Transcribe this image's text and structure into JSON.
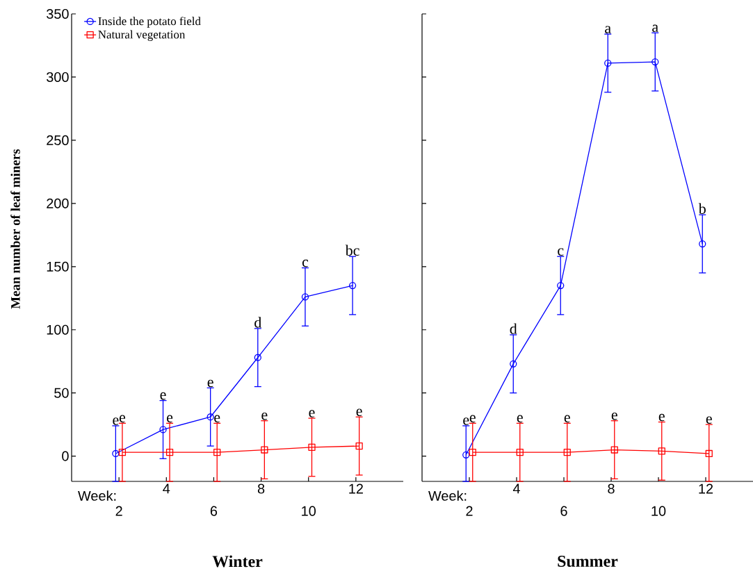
{
  "chart_data": [
    {
      "type": "line",
      "xlabel": "Winter",
      "ylabel": "Mean number of leaf miners",
      "categories": [
        "2",
        "4",
        "6",
        "8",
        "10",
        "12"
      ],
      "ylim": [
        -20,
        350
      ],
      "yticks": [
        0,
        50,
        100,
        150,
        200,
        250,
        300,
        350
      ],
      "legend": "top left",
      "series": [
        {
          "name": "Inside the potato field",
          "color": "#0000ff",
          "marker": "circle",
          "values": [
            2,
            21,
            31,
            78,
            126,
            135
          ],
          "errors": [
            [
              -20,
              24
            ],
            23,
            23,
            23,
            23,
            23
          ]
        },
        {
          "name": "Natural vegetation",
          "color": "#ff0000",
          "marker": "square",
          "values": [
            3,
            3,
            3,
            5,
            7,
            8
          ],
          "errors": [
            [
              -20,
              26
            ],
            [
              -20,
              26
            ],
            [
              -20,
              26
            ],
            23,
            23,
            23
          ]
        }
      ],
      "annotations": [
        "Week:",
        {
          "text": "e",
          "x": "2",
          "y": 24
        },
        {
          "text": "e",
          "x": "2",
          "y": 26
        },
        {
          "text": "e",
          "x": "4",
          "y": 44
        },
        {
          "text": "e",
          "x": "4",
          "y": 26
        },
        {
          "text": "e",
          "x": "6",
          "y": 54
        },
        {
          "text": "e",
          "x": "6",
          "y": 26
        },
        {
          "text": "d",
          "x": "8",
          "y": 101
        },
        {
          "text": "e",
          "x": "8",
          "y": 28
        },
        {
          "text": "c",
          "x": "10",
          "y": 149
        },
        {
          "text": "e",
          "x": "10",
          "y": 30
        },
        {
          "text": "bc",
          "x": "12",
          "y": 158
        },
        {
          "text": "e",
          "x": "12",
          "y": 31
        }
      ]
    },
    {
      "type": "line",
      "xlabel": "Summer",
      "categories": [
        "2",
        "4",
        "6",
        "8",
        "10",
        "12"
      ],
      "ylim": [
        -20,
        350
      ],
      "yticks": [
        0,
        50,
        100,
        150,
        200,
        250,
        300,
        350
      ],
      "tick_labels": "x",
      "series": [
        {
          "color": "#0000ff",
          "marker": "circle",
          "values": [
            1,
            73,
            135,
            311,
            312,
            168
          ],
          "errors": [
            [
              -20,
              24
            ],
            23,
            23,
            23,
            23,
            23
          ]
        },
        {
          "color": "#ff0000",
          "marker": "square",
          "values": [
            3,
            3,
            3,
            5,
            4,
            2
          ],
          "errors": [
            [
              -20,
              26
            ],
            [
              -20,
              26
            ],
            [
              -20,
              26
            ],
            23,
            23,
            [
              -20,
              25
            ]
          ]
        }
      ],
      "annotations": [
        "Week:",
        {
          "text": "e",
          "x": "2",
          "y": 24
        },
        {
          "text": "e",
          "x": "2",
          "y": 26
        },
        {
          "text": "d",
          "x": "4",
          "y": 96
        },
        {
          "text": "e",
          "x": "4",
          "y": 26
        },
        {
          "text": "c",
          "x": "6",
          "y": 158
        },
        {
          "text": "e",
          "x": "6",
          "y": 26
        },
        {
          "text": "a",
          "x": "8",
          "y": 334
        },
        {
          "text": "e",
          "x": "8",
          "y": 28
        },
        {
          "text": "a",
          "x": "10",
          "y": 335
        },
        {
          "text": "e",
          "x": "10",
          "y": 27
        },
        {
          "text": "b",
          "x": "12",
          "y": 191
        },
        {
          "text": "e",
          "x": "12",
          "y": 25
        }
      ]
    }
  ]
}
